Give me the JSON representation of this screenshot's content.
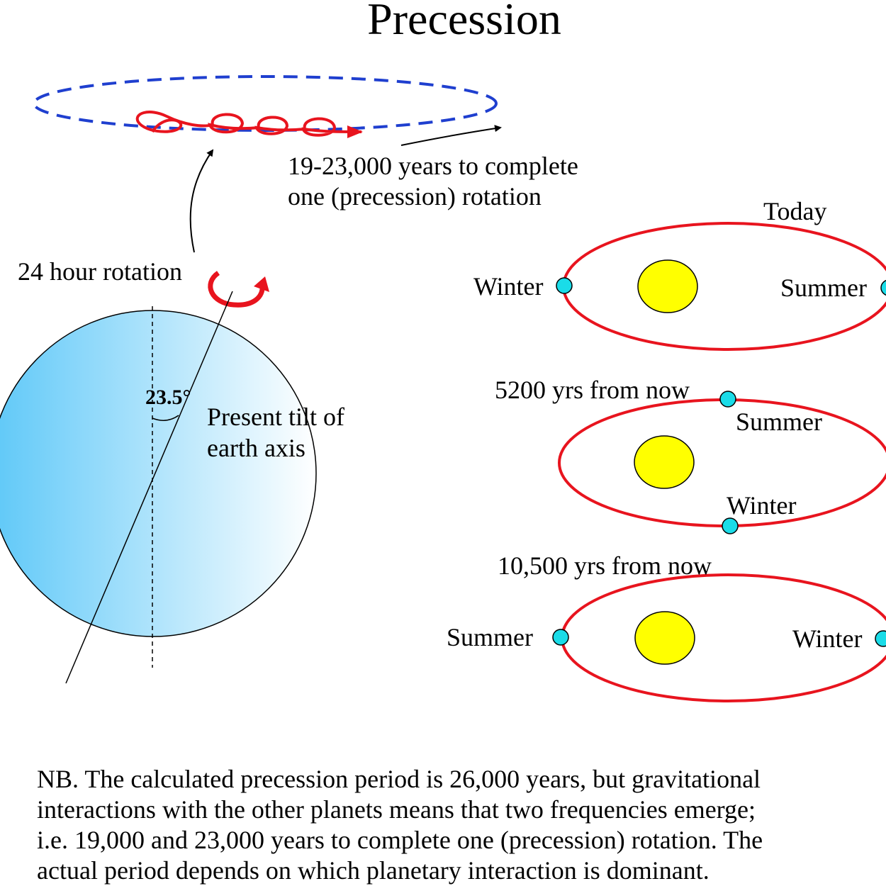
{
  "title": "Precession",
  "precession_caption": {
    "line1": "19-23,000 years to complete",
    "line2": "one (precession) rotation"
  },
  "rotation_label": "24 hour rotation",
  "tilt": {
    "angle_label": "23.5°",
    "line1": "Present tilt of",
    "line2": "earth axis"
  },
  "orbits": {
    "today": {
      "label": "Today",
      "left": "Winter",
      "right": "Summer"
    },
    "y5200": {
      "label": "5200 yrs from now",
      "top": "Summer",
      "bottom": "Winter"
    },
    "y10500": {
      "label": "10,500 yrs from now",
      "left": "Summer",
      "right": "Winter"
    }
  },
  "note": {
    "line1": "NB. The calculated precession period is 26,000 years, but gravitational",
    "line2": "interactions with the other planets means that two frequencies emerge;",
    "line3": "i.e. 19,000 and 23,000 years to complete one (precession) rotation.  The",
    "line4": "actual period depends on which planetary interaction is dominant."
  },
  "colors": {
    "earth_dark": "#5ec8f8",
    "earth_light": "#ffffff",
    "orbit": "#e8141e",
    "sun": "#ffff00",
    "season_marker": "#1adce8",
    "precession_path": "#1f3fcf"
  }
}
